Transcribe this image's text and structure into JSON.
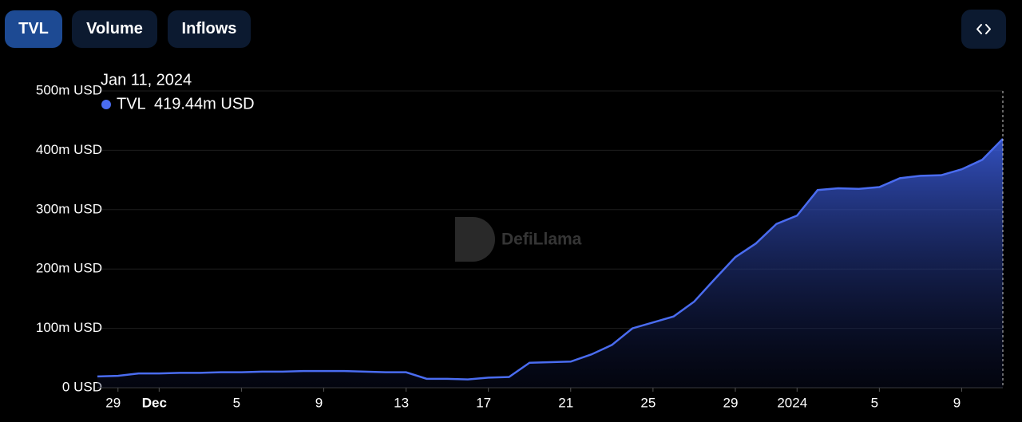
{
  "tabs": [
    "TVL",
    "Volume",
    "Inflows"
  ],
  "chart_data": {
    "type": "area",
    "watermark": "DefiLlama",
    "x": [
      "Nov 28",
      "Nov 29",
      "Nov 30",
      "Dec 1",
      "Dec 2",
      "Dec 3",
      "Dec 4",
      "Dec 5",
      "Dec 6",
      "Dec 7",
      "Dec 8",
      "Dec 9",
      "Dec 10",
      "Dec 11",
      "Dec 12",
      "Dec 13",
      "Dec 14",
      "Dec 15",
      "Dec 16",
      "Dec 17",
      "Dec 18",
      "Dec 19",
      "Dec 20",
      "Dec 21",
      "Dec 22",
      "Dec 23",
      "Dec 24",
      "Dec 25",
      "Dec 26",
      "Dec 27",
      "Dec 28",
      "Dec 29",
      "Dec 30",
      "Dec 31",
      "Jan 1",
      "Jan 2",
      "Jan 3",
      "Jan 4",
      "Jan 5",
      "Jan 6",
      "Jan 7",
      "Jan 8",
      "Jan 9",
      "Jan 10",
      "Jan 11"
    ],
    "series": [
      {
        "name": "TVL",
        "color": "#4a6cf0",
        "values": [
          19,
          20,
          24,
          24,
          25,
          25,
          26,
          26,
          27,
          27,
          28,
          28,
          28,
          27,
          26,
          26,
          15,
          15,
          14,
          17,
          18,
          42,
          43,
          44,
          56,
          72,
          100,
          110,
          120,
          145,
          183,
          220,
          243,
          276,
          290,
          333,
          336,
          335,
          338,
          353,
          357,
          358,
          368,
          384,
          419.44
        ]
      }
    ],
    "ylim": [
      0,
      500
    ],
    "yticks": [
      {
        "value": 0,
        "label": "0 USD"
      },
      {
        "value": 100,
        "label": "100m USD"
      },
      {
        "value": 200,
        "label": "200m USD"
      },
      {
        "value": 300,
        "label": "300m USD"
      },
      {
        "value": 400,
        "label": "400m USD"
      },
      {
        "value": 500,
        "label": "500m USD"
      }
    ],
    "xticks": [
      {
        "value": "Nov 29",
        "label": "29"
      },
      {
        "value": "Dec 1",
        "label": "Dec"
      },
      {
        "value": "Dec 5",
        "label": "5"
      },
      {
        "value": "Dec 9",
        "label": "9"
      },
      {
        "value": "Dec 13",
        "label": "13"
      },
      {
        "value": "Dec 17",
        "label": "17"
      },
      {
        "value": "Dec 21",
        "label": "21"
      },
      {
        "value": "Dec 25",
        "label": "25"
      },
      {
        "value": "Dec 29",
        "label": "29"
      },
      {
        "value": "Jan 1",
        "label": "2024"
      },
      {
        "value": "Jan 5",
        "label": "5"
      },
      {
        "value": "Jan 9",
        "label": "9"
      }
    ],
    "grid": true,
    "tooltip": {
      "title": "Jan 11, 2024",
      "value": 419.44,
      "label": "419.44m USD"
    }
  }
}
